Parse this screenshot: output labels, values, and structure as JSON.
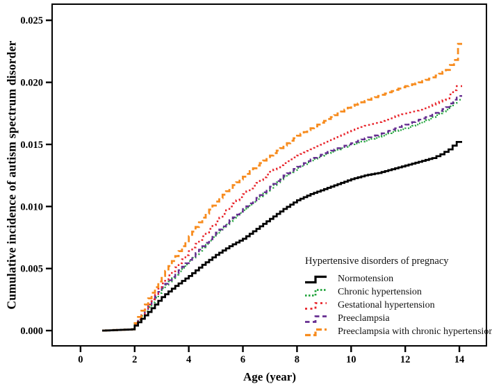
{
  "figure": {
    "y_axis_label": "Cumulative incidence of autism spectrum disorder",
    "x_axis_label": "Age (year)"
  },
  "legend": {
    "title": "Hypertensive disorders of pregnacy",
    "items": [
      {
        "label": "Normotension",
        "color": "#000000",
        "dash": "solid",
        "swatch_width": 3.2
      },
      {
        "label": "Chronic hypertension",
        "color": "#1FA23A",
        "dash": "2.5 2.5",
        "swatch_width": 2.8
      },
      {
        "label": "Gestational hypertension",
        "color": "#E8232A",
        "dash": "3 4.5",
        "swatch_width": 2.8
      },
      {
        "label": "Preeclampsia",
        "color": "#652D90",
        "dash": "6.5 4.5",
        "swatch_width": 2.8
      },
      {
        "label": "Preeclampsia with chronic hypertension",
        "color": "#F78C1F",
        "dash": "8 4",
        "swatch_width": 3.2
      }
    ]
  },
  "chart_data": {
    "type": "line",
    "title": "",
    "xlabel": "Age (year)",
    "ylabel": "Cumulative incidence of autism spectrum disorder",
    "xlim": [
      -1.05,
      15.0
    ],
    "ylim": [
      -0.00123,
      0.0263
    ],
    "grid": false,
    "legend_position": "inside lower right",
    "step_interpolation": true,
    "x_tick_values": [
      0,
      2,
      4,
      6,
      8,
      10,
      12,
      14
    ],
    "x_tick_labels": [
      "0",
      "2",
      "4",
      "6",
      "8",
      "10",
      "12",
      "14"
    ],
    "y_tick_values": [
      0.0,
      0.005,
      0.01,
      0.015,
      0.02,
      0.025
    ],
    "y_tick_labels": [
      "0.000",
      "0.005",
      "0.010",
      "0.015",
      "0.020",
      "0.025"
    ],
    "series": [
      {
        "name": "Chronic hypertension",
        "color": "#1FA23A",
        "dash": "2 2.6",
        "width": 2.2,
        "x": [
          0.8,
          1.9,
          2,
          2.5,
          3,
          3.5,
          4,
          4.5,
          5,
          5.5,
          6,
          6.5,
          7,
          7.5,
          8,
          8.5,
          9,
          9.5,
          10,
          10.5,
          11,
          11.5,
          12,
          12.5,
          13,
          13.5,
          13.9,
          14.1
        ],
        "y": [
          0,
          0.0001,
          0.0005,
          0.0019,
          0.0034,
          0.0045,
          0.0056,
          0.0067,
          0.0078,
          0.0088,
          0.0097,
          0.0106,
          0.0115,
          0.0124,
          0.0131,
          0.0137,
          0.0142,
          0.0146,
          0.015,
          0.0153,
          0.0156,
          0.016,
          0.0163,
          0.0167,
          0.0172,
          0.0178,
          0.0186,
          0.0186
        ]
      },
      {
        "name": "Preeclampsia",
        "color": "#652D90",
        "dash": "7 5",
        "width": 2.4,
        "x": [
          0.8,
          1.9,
          2,
          2.5,
          3,
          3.5,
          4,
          4.5,
          5,
          5.5,
          6,
          6.5,
          7,
          7.5,
          8,
          8.5,
          9,
          9.5,
          10,
          10.5,
          11,
          11.5,
          12,
          12.5,
          13,
          13.5,
          13.9,
          14.1
        ],
        "y": [
          0,
          0.0001,
          0.0005,
          0.002,
          0.0035,
          0.0046,
          0.0057,
          0.0068,
          0.0079,
          0.0089,
          0.0098,
          0.0107,
          0.0116,
          0.0125,
          0.0132,
          0.0138,
          0.0143,
          0.0147,
          0.0151,
          0.0155,
          0.0158,
          0.0162,
          0.0166,
          0.017,
          0.0174,
          0.018,
          0.0189,
          0.0189
        ]
      },
      {
        "name": "Gestational hypertension",
        "color": "#E8232A",
        "dash": "2.6 4.4",
        "width": 2.4,
        "x": [
          0.8,
          1.9,
          2,
          2.5,
          3,
          3.5,
          4,
          4.5,
          5,
          5.5,
          6,
          6.5,
          7,
          7.5,
          8,
          8.5,
          9,
          9.5,
          10,
          10.5,
          11,
          11.5,
          12,
          12.5,
          13,
          13.5,
          13.9,
          14.1
        ],
        "y": [
          0,
          0.0001,
          0.0005,
          0.0021,
          0.0038,
          0.0051,
          0.0064,
          0.0076,
          0.0088,
          0.01,
          0.011,
          0.0119,
          0.0128,
          0.0135,
          0.0141,
          0.0146,
          0.0151,
          0.0156,
          0.0161,
          0.0165,
          0.0168,
          0.0172,
          0.0175,
          0.0178,
          0.0182,
          0.0187,
          0.0197,
          0.0197
        ]
      },
      {
        "name": "Preeclampsia with chronic hypertension",
        "color": "#F78C1F",
        "dash": "9 5",
        "width": 2.8,
        "x": [
          0.8,
          1.9,
          2,
          2.5,
          3,
          3.5,
          4,
          4.5,
          5,
          5.5,
          6,
          6.5,
          7,
          7.5,
          8,
          8.5,
          9,
          9.5,
          10,
          10.5,
          11,
          11.5,
          12,
          12.5,
          13,
          13.5,
          13.8,
          13.95,
          14.1
        ],
        "y": [
          0,
          0.0001,
          0.0006,
          0.0026,
          0.0044,
          0.006,
          0.0076,
          0.0091,
          0.0104,
          0.0115,
          0.0124,
          0.0133,
          0.0141,
          0.0149,
          0.0157,
          0.0163,
          0.0169,
          0.0175,
          0.0181,
          0.0185,
          0.0189,
          0.0193,
          0.0197,
          0.02,
          0.0204,
          0.021,
          0.0218,
          0.0231,
          0.0231
        ]
      },
      {
        "name": "Normotension",
        "color": "#000000",
        "dash": "solid",
        "width": 2.8,
        "x": [
          0.8,
          1.9,
          2,
          2.5,
          3,
          3.5,
          4,
          4.5,
          5,
          5.5,
          6,
          6.5,
          7,
          7.5,
          8,
          8.5,
          9,
          9.5,
          10,
          10.5,
          11,
          11.5,
          12,
          12.5,
          13,
          13.3,
          13.6,
          13.9,
          14.1
        ],
        "y": [
          0,
          0.0001,
          0.0004,
          0.0015,
          0.0027,
          0.0036,
          0.0044,
          0.0053,
          0.0061,
          0.0068,
          0.0074,
          0.0082,
          0.009,
          0.0098,
          0.0105,
          0.011,
          0.0114,
          0.0118,
          0.0122,
          0.0125,
          0.0127,
          0.013,
          0.0133,
          0.0136,
          0.0139,
          0.0142,
          0.0146,
          0.0152,
          0.0152
        ]
      }
    ]
  }
}
